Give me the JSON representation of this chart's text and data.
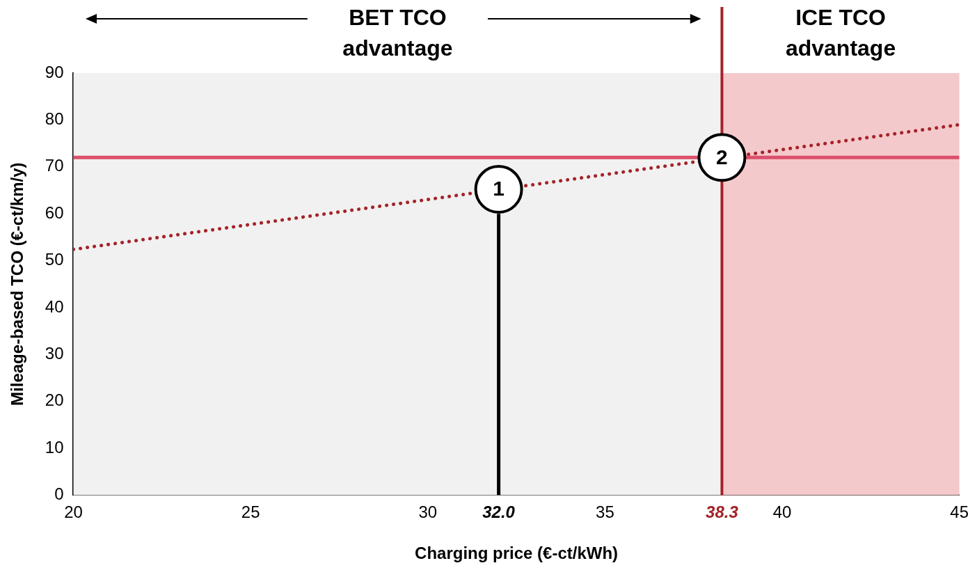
{
  "chart_data": {
    "type": "line",
    "xlabel": "Charging price (€-ct/kWh)",
    "ylabel": "Mileage-based TCO (€-ct/km/y)",
    "xlim": [
      20,
      45
    ],
    "xticks": [
      20,
      25,
      30,
      {
        "value": 32,
        "label": "32.0"
      },
      35,
      {
        "value": 38.3,
        "label": "38.3"
      },
      40,
      45
    ],
    "ylim": [
      0,
      90
    ],
    "yticks": [
      0,
      10,
      20,
      30,
      40,
      50,
      60,
      70,
      80,
      90
    ],
    "grid": false,
    "legend": false,
    "series": [
      {
        "color": "#dc4f6a",
        "x": [
          20,
          45
        ],
        "values": [
          72,
          72
        ],
        "line_style": "solid"
      },
      {
        "color": "#a52228",
        "x": [
          20,
          45
        ],
        "values": [
          52.4,
          79
        ],
        "line_style": "dotted"
      },
      {
        "color": "#000000",
        "x": [
          32,
          32
        ],
        "values": [
          0,
          60
        ],
        "line_style": "solid"
      }
    ],
    "ref_lines": [
      {
        "axis": "x",
        "value": 38.3,
        "color": "#a52228"
      }
    ],
    "bands": [
      {
        "axis": "x",
        "from": 20,
        "to": 38.3,
        "label": "BET TCO advantage",
        "color": "#f1f1f1"
      },
      {
        "axis": "x",
        "from": 38.3,
        "to": 45,
        "label": "ICE TCO advantage",
        "color": "#f4c9cb"
      }
    ],
    "annotations": [
      {
        "text": "1",
        "x": 32,
        "y": 65.2
      },
      {
        "text": "2",
        "x": 38.3,
        "y": 72
      }
    ]
  }
}
